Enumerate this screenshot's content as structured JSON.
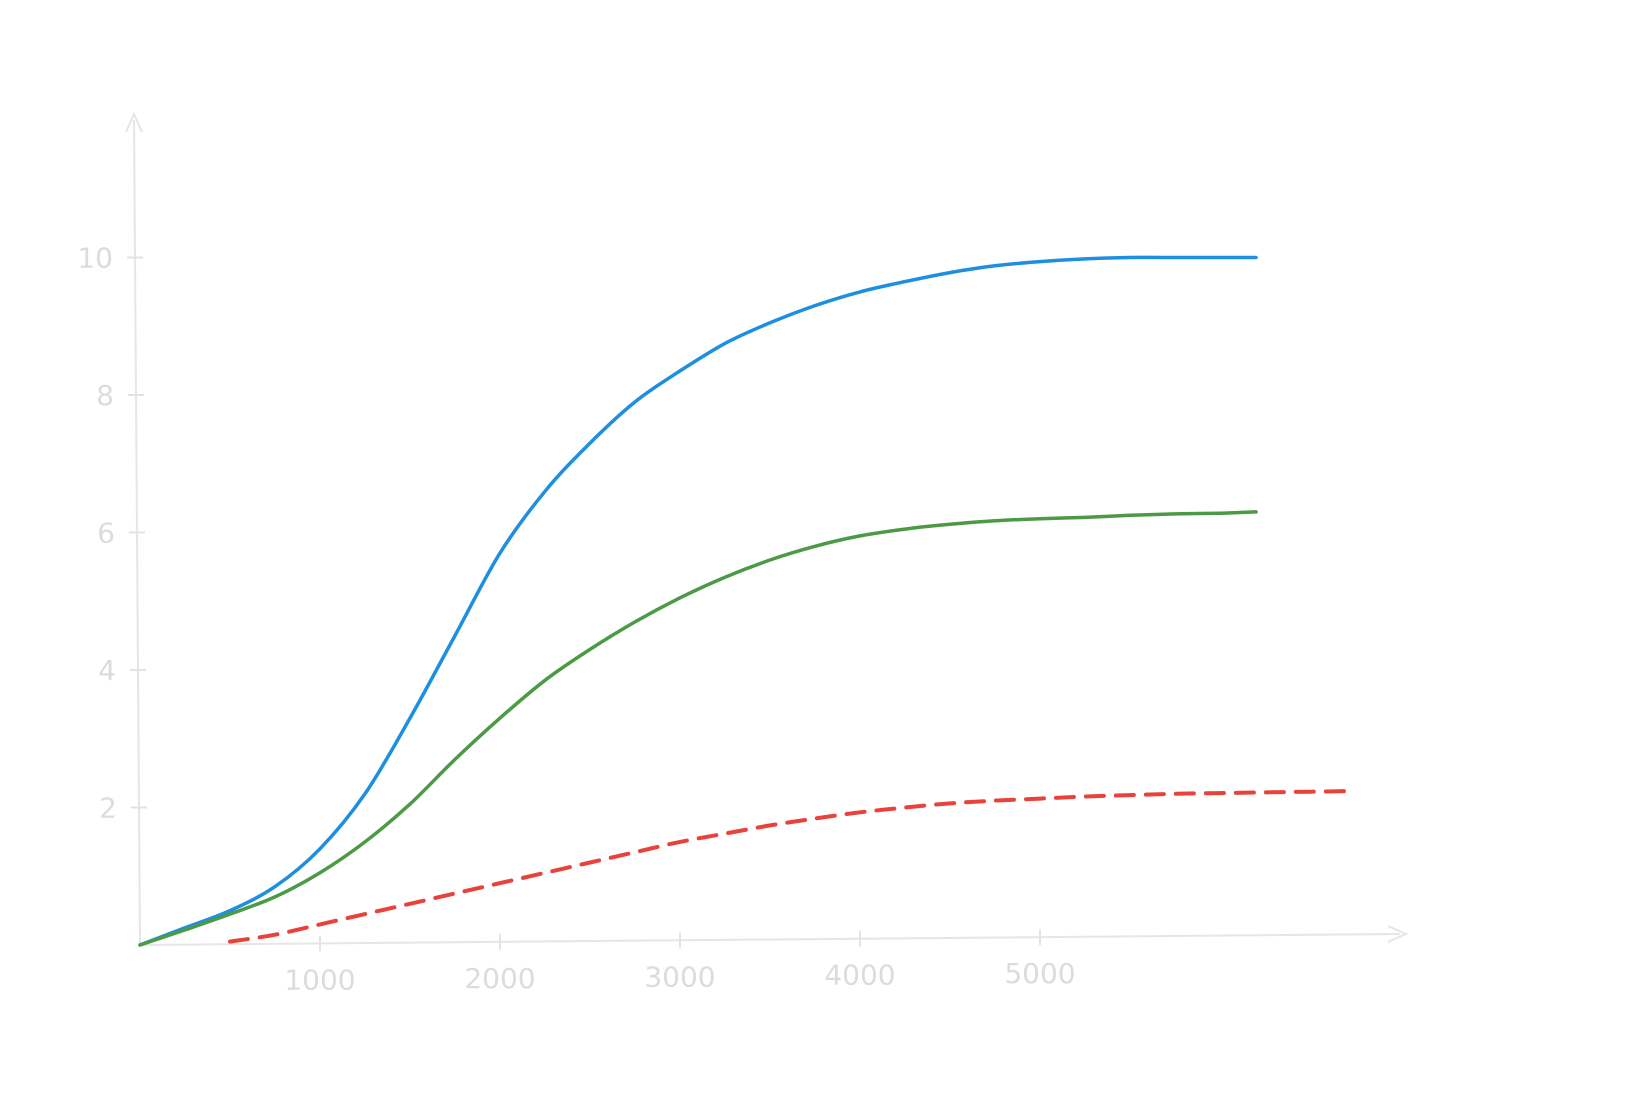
{
  "chart_data": {
    "type": "line",
    "title": "",
    "xlabel": "",
    "ylabel": "",
    "xlim": [
      0,
      7000
    ],
    "ylim": [
      0,
      12
    ],
    "x_ticks": [
      1000,
      2000,
      3000,
      4000,
      5000
    ],
    "y_ticks": [
      2,
      4,
      6,
      8,
      10
    ],
    "grid": false,
    "legend": "none",
    "series": [
      {
        "color": "#1e8fe0",
        "style": "solid",
        "x": [
          0,
          250,
          500,
          750,
          1000,
          1250,
          1500,
          1750,
          2000,
          2250,
          2500,
          2750,
          3000,
          3250,
          3500,
          3750,
          4000,
          4250,
          4500,
          4750,
          5000,
          5250,
          5500,
          5750,
          6000,
          6200
        ],
        "y": [
          0,
          0.25,
          0.5,
          0.85,
          1.4,
          2.2,
          3.3,
          4.5,
          5.7,
          6.6,
          7.3,
          7.9,
          8.35,
          8.75,
          9.05,
          9.3,
          9.5,
          9.65,
          9.78,
          9.88,
          9.94,
          9.98,
          10.0,
          10.0,
          10.0,
          10.0
        ]
      },
      {
        "color": "#4c9a45",
        "style": "solid",
        "x": [
          0,
          250,
          500,
          750,
          1000,
          1250,
          1500,
          1750,
          2000,
          2250,
          2500,
          2750,
          3000,
          3250,
          3500,
          3750,
          4000,
          4250,
          4500,
          4750,
          5000,
          5250,
          5500,
          5750,
          6000,
          6200
        ],
        "y": [
          0,
          0.22,
          0.45,
          0.7,
          1.05,
          1.5,
          2.05,
          2.7,
          3.3,
          3.85,
          4.3,
          4.7,
          5.05,
          5.35,
          5.6,
          5.8,
          5.95,
          6.05,
          6.12,
          6.17,
          6.2,
          6.22,
          6.25,
          6.27,
          6.28,
          6.3
        ]
      },
      {
        "color": "#e8423a",
        "style": "dashed",
        "x": [
          500,
          750,
          1000,
          1250,
          1500,
          1750,
          2000,
          2250,
          2500,
          2750,
          3000,
          3250,
          3500,
          3750,
          4000,
          4250,
          4500,
          4750,
          5000,
          5250,
          5500,
          5750,
          6000,
          6250,
          6500,
          6750
        ],
        "y": [
          0.05,
          0.15,
          0.3,
          0.45,
          0.6,
          0.75,
          0.9,
          1.05,
          1.2,
          1.35,
          1.5,
          1.62,
          1.74,
          1.84,
          1.93,
          2.0,
          2.06,
          2.1,
          2.13,
          2.16,
          2.18,
          2.2,
          2.21,
          2.22,
          2.23,
          2.24
        ]
      }
    ]
  }
}
